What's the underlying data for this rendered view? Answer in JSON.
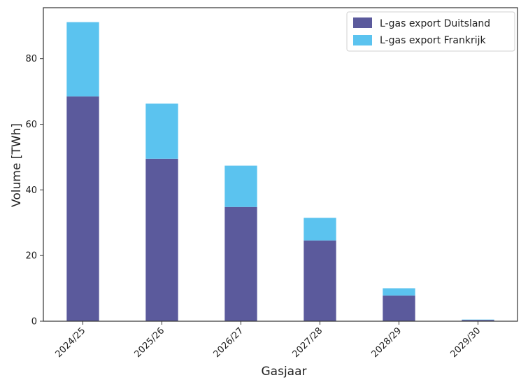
{
  "chart_data": {
    "type": "bar",
    "stacked": true,
    "categories": [
      "2024/25",
      "2025/26",
      "2026/27",
      "2027/28",
      "2028/29",
      "2029/30"
    ],
    "series": [
      {
        "name": "L-gas export Duitsland",
        "values": [
          68.5,
          49.5,
          34.8,
          24.6,
          7.8,
          0.4
        ],
        "color": "#5b5a9c"
      },
      {
        "name": "L-gas export Frankrijk",
        "values": [
          22.6,
          16.8,
          12.6,
          6.9,
          2.2,
          0.1
        ],
        "color": "#5bc3ef"
      }
    ],
    "xlabel": "Gasjaar",
    "ylabel": "Volume [TWh]",
    "ylim": [
      0,
      95.5
    ],
    "yticks": [
      0,
      20,
      40,
      60,
      80
    ],
    "grid": false,
    "legend_position": "top-right"
  }
}
